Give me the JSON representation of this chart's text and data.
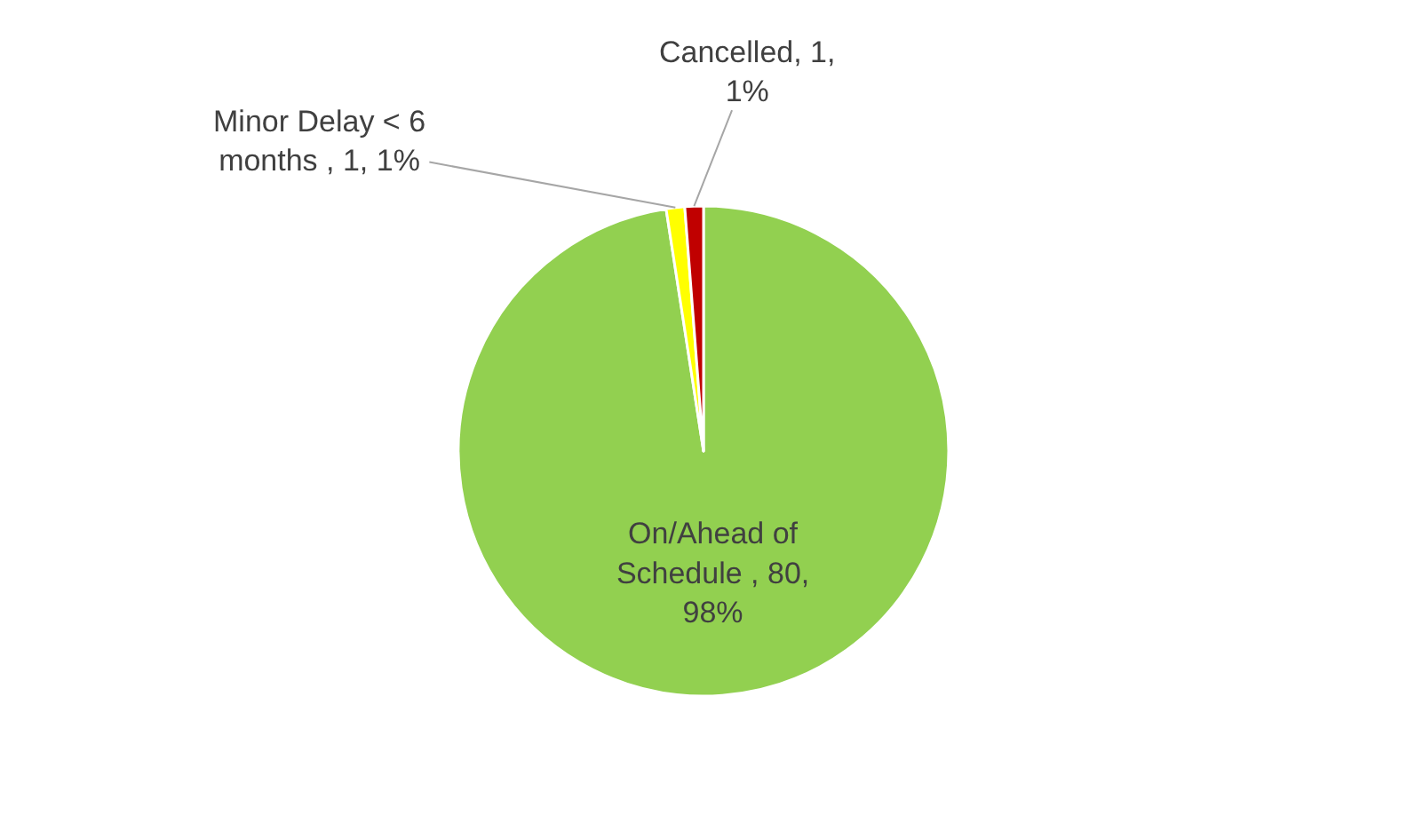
{
  "chart_data": {
    "type": "pie",
    "categories": [
      "On/Ahead of Schedule ",
      "Minor Delay < 6 months ",
      "Cancelled"
    ],
    "values": [
      80,
      1,
      1
    ],
    "colors": [
      "#92d050",
      "#ffff00",
      "#c00000"
    ],
    "value_labels": [
      "80, 98%",
      "1, 1%",
      "1, 1%"
    ],
    "legend": false
  }
}
